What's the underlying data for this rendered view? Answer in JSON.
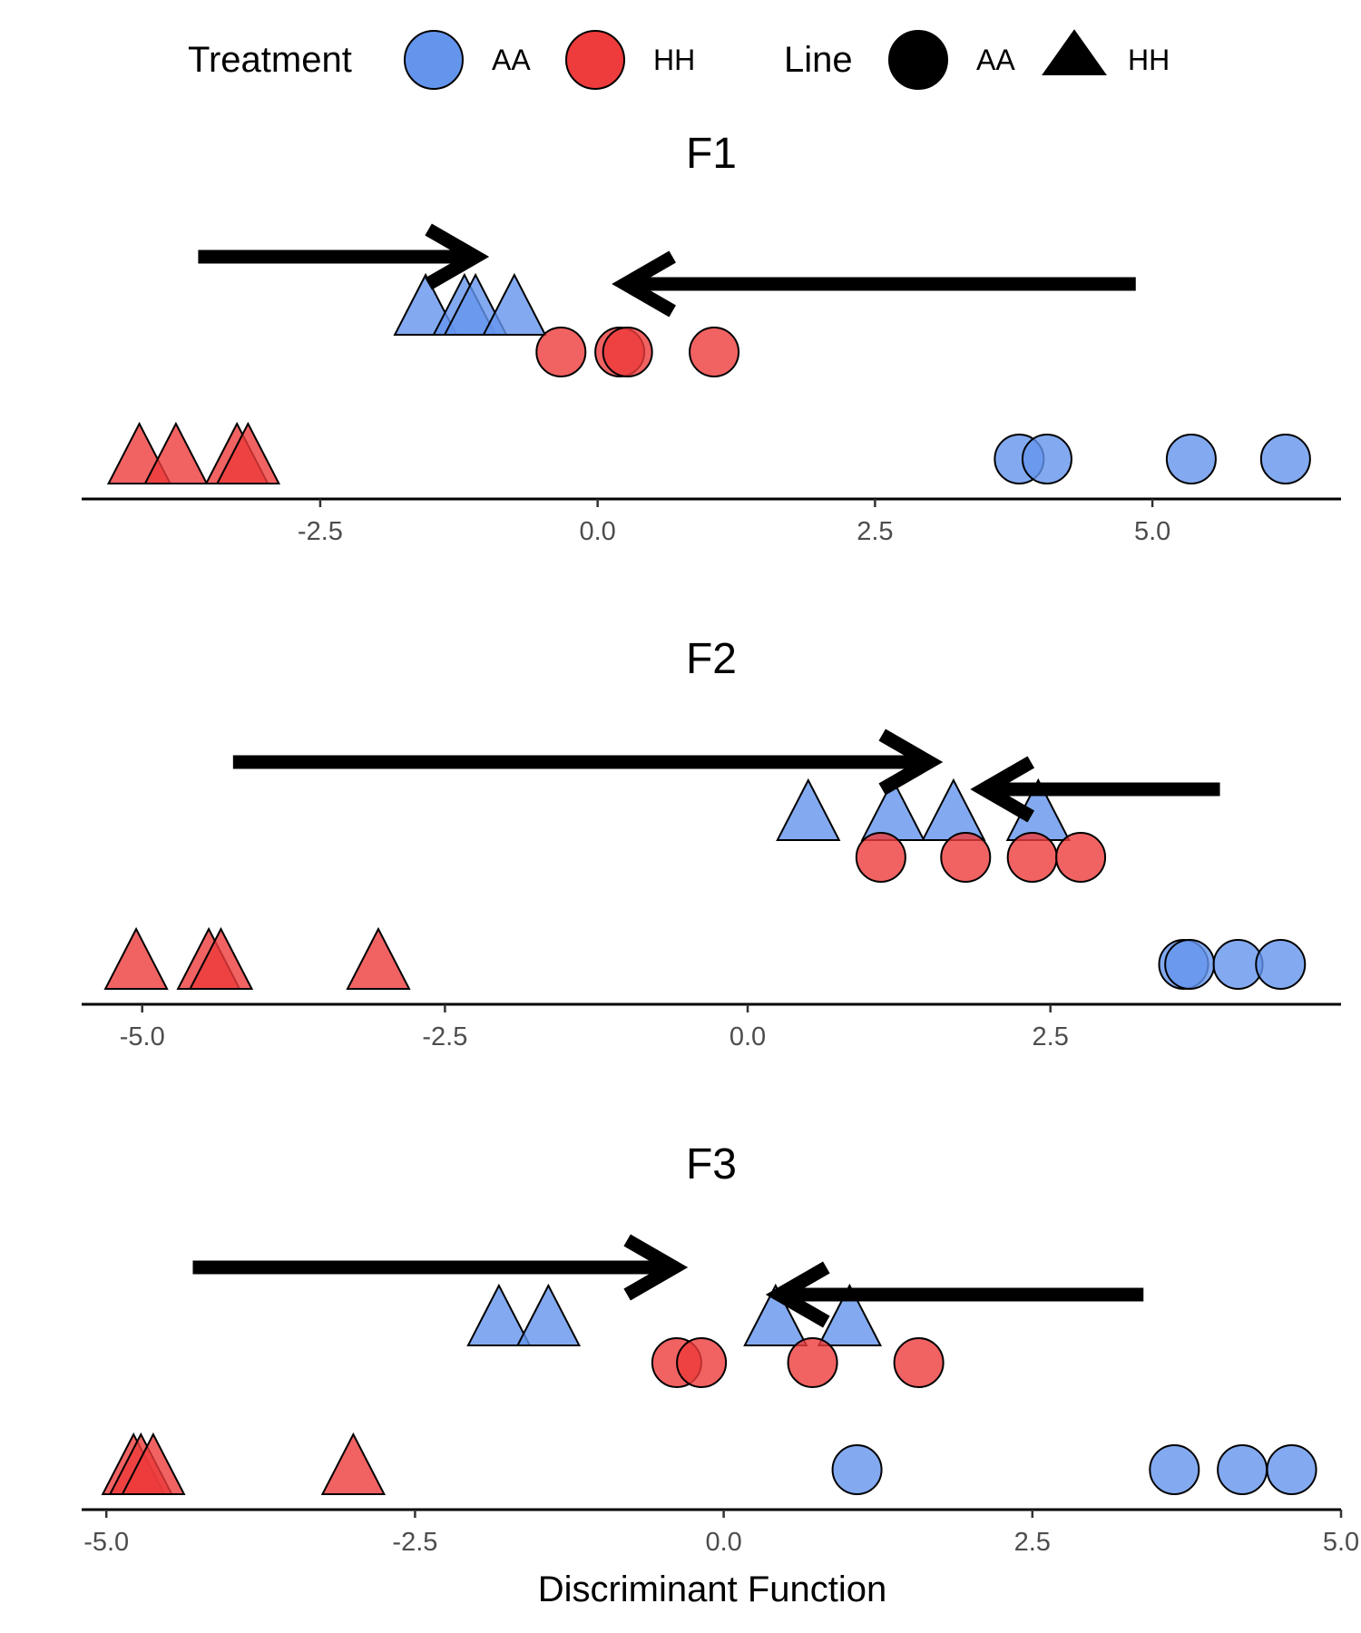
{
  "legend": {
    "treatment_title": "Treatment",
    "treatment_items": [
      {
        "label": "AA",
        "color": "#6495ED"
      },
      {
        "label": "HH",
        "color": "#EE3B3B"
      }
    ],
    "line_title": "Line",
    "line_items": [
      {
        "label": "AA",
        "shape": "circle"
      },
      {
        "label": "HH",
        "shape": "triangle"
      }
    ]
  },
  "xlabel": "Discriminant Function",
  "colors": {
    "AA": "#6495ED",
    "HH": "#EE3B3B",
    "arrow": "#000000"
  },
  "chart_data": [
    {
      "type": "scatter",
      "title": "F1",
      "xlim": [
        -4.65,
        6.7
      ],
      "ticks": [
        -2.5,
        0.0,
        2.5,
        5.0
      ],
      "tick_labels": [
        "-2.5",
        "0.0",
        "2.5",
        "5.0"
      ],
      "points": [
        {
          "treatment": "HH",
          "line": "HH",
          "x": -4.13,
          "level": 1
        },
        {
          "treatment": "HH",
          "line": "HH",
          "x": -3.8,
          "level": 1
        },
        {
          "treatment": "HH",
          "line": "HH",
          "x": -3.25,
          "level": 1
        },
        {
          "treatment": "HH",
          "line": "HH",
          "x": -3.15,
          "level": 1
        },
        {
          "treatment": "AA",
          "line": "AA",
          "x": 3.8,
          "level": 1
        },
        {
          "treatment": "AA",
          "line": "AA",
          "x": 4.05,
          "level": 1
        },
        {
          "treatment": "AA",
          "line": "AA",
          "x": 5.35,
          "level": 1
        },
        {
          "treatment": "AA",
          "line": "AA",
          "x": 6.2,
          "level": 1
        },
        {
          "treatment": "AA",
          "line": "HH",
          "x": -1.55,
          "level": 3
        },
        {
          "treatment": "AA",
          "line": "HH",
          "x": -1.2,
          "level": 3
        },
        {
          "treatment": "AA",
          "line": "HH",
          "x": -1.1,
          "level": 3
        },
        {
          "treatment": "AA",
          "line": "HH",
          "x": -0.75,
          "level": 3
        },
        {
          "treatment": "HH",
          "line": "AA",
          "x": -0.33,
          "level": 2
        },
        {
          "treatment": "HH",
          "line": "AA",
          "x": 0.2,
          "level": 2
        },
        {
          "treatment": "HH",
          "line": "AA",
          "x": 0.27,
          "level": 2
        },
        {
          "treatment": "HH",
          "line": "AA",
          "x": 1.05,
          "level": 2
        }
      ],
      "arrows": [
        {
          "from": -3.6,
          "to": -1.1,
          "row": "upper"
        },
        {
          "from": 4.85,
          "to": 0.25,
          "row": "lower"
        }
      ]
    },
    {
      "type": "scatter",
      "title": "F2",
      "xlim": [
        -5.5,
        4.9
      ],
      "ticks": [
        -5.0,
        -2.5,
        0.0,
        2.5
      ],
      "tick_labels": [
        "-5.0",
        "-2.5",
        "0.0",
        "2.5"
      ],
      "points": [
        {
          "treatment": "HH",
          "line": "HH",
          "x": -5.05,
          "level": 1
        },
        {
          "treatment": "HH",
          "line": "HH",
          "x": -4.45,
          "level": 1
        },
        {
          "treatment": "HH",
          "line": "HH",
          "x": -4.35,
          "level": 1
        },
        {
          "treatment": "HH",
          "line": "HH",
          "x": -3.05,
          "level": 1
        },
        {
          "treatment": "AA",
          "line": "AA",
          "x": 3.6,
          "level": 1
        },
        {
          "treatment": "AA",
          "line": "AA",
          "x": 3.65,
          "level": 1
        },
        {
          "treatment": "AA",
          "line": "AA",
          "x": 4.05,
          "level": 1
        },
        {
          "treatment": "AA",
          "line": "AA",
          "x": 4.4,
          "level": 1
        },
        {
          "treatment": "AA",
          "line": "HH",
          "x": 0.5,
          "level": 3
        },
        {
          "treatment": "AA",
          "line": "HH",
          "x": 1.2,
          "level": 3
        },
        {
          "treatment": "AA",
          "line": "HH",
          "x": 1.7,
          "level": 3
        },
        {
          "treatment": "AA",
          "line": "HH",
          "x": 2.4,
          "level": 3
        },
        {
          "treatment": "HH",
          "line": "AA",
          "x": 1.1,
          "level": 2
        },
        {
          "treatment": "HH",
          "line": "AA",
          "x": 1.8,
          "level": 2
        },
        {
          "treatment": "HH",
          "line": "AA",
          "x": 2.35,
          "level": 2
        },
        {
          "treatment": "HH",
          "line": "AA",
          "x": 2.75,
          "level": 2
        }
      ],
      "arrows": [
        {
          "from": -4.25,
          "to": 1.5,
          "row": "upper"
        },
        {
          "from": 3.9,
          "to": 1.95,
          "row": "lower"
        }
      ]
    },
    {
      "type": "scatter",
      "title": "F3",
      "xlim": [
        -5.2,
        5.0
      ],
      "ticks": [
        -5.0,
        -2.5,
        0.0,
        2.5,
        5.0
      ],
      "tick_labels": [
        "-5.0",
        "-2.5",
        "0.0",
        "2.5",
        "5.0"
      ],
      "points": [
        {
          "treatment": "HH",
          "line": "HH",
          "x": -4.78,
          "level": 1
        },
        {
          "treatment": "HH",
          "line": "HH",
          "x": -4.72,
          "level": 1
        },
        {
          "treatment": "HH",
          "line": "HH",
          "x": -4.62,
          "level": 1
        },
        {
          "treatment": "HH",
          "line": "HH",
          "x": -3.0,
          "level": 1
        },
        {
          "treatment": "AA",
          "line": "AA",
          "x": 1.08,
          "level": 1
        },
        {
          "treatment": "AA",
          "line": "AA",
          "x": 3.65,
          "level": 1
        },
        {
          "treatment": "AA",
          "line": "AA",
          "x": 4.2,
          "level": 1
        },
        {
          "treatment": "AA",
          "line": "AA",
          "x": 4.6,
          "level": 1
        },
        {
          "treatment": "AA",
          "line": "HH",
          "x": -1.82,
          "level": 3
        },
        {
          "treatment": "AA",
          "line": "HH",
          "x": -1.42,
          "level": 3
        },
        {
          "treatment": "AA",
          "line": "HH",
          "x": 0.42,
          "level": 3
        },
        {
          "treatment": "AA",
          "line": "HH",
          "x": 1.02,
          "level": 3
        },
        {
          "treatment": "HH",
          "line": "AA",
          "x": -0.38,
          "level": 2
        },
        {
          "treatment": "HH",
          "line": "AA",
          "x": -0.18,
          "level": 2
        },
        {
          "treatment": "HH",
          "line": "AA",
          "x": 0.72,
          "level": 2
        },
        {
          "treatment": "HH",
          "line": "AA",
          "x": 1.58,
          "level": 2
        }
      ],
      "arrows": [
        {
          "from": -4.3,
          "to": -0.4,
          "row": "upper"
        },
        {
          "from": 3.4,
          "to": 0.45,
          "row": "lower"
        }
      ]
    }
  ]
}
